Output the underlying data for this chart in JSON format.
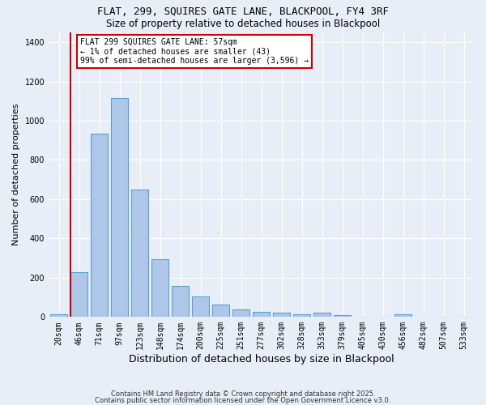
{
  "title_line1": "FLAT, 299, SQUIRES GATE LANE, BLACKPOOL, FY4 3RF",
  "title_line2": "Size of property relative to detached houses in Blackpool",
  "xlabel": "Distribution of detached houses by size in Blackpool",
  "ylabel": "Number of detached properties",
  "categories": [
    "20sqm",
    "46sqm",
    "71sqm",
    "97sqm",
    "123sqm",
    "148sqm",
    "174sqm",
    "200sqm",
    "225sqm",
    "251sqm",
    "277sqm",
    "302sqm",
    "328sqm",
    "353sqm",
    "379sqm",
    "405sqm",
    "430sqm",
    "456sqm",
    "482sqm",
    "507sqm",
    "533sqm"
  ],
  "values": [
    15,
    230,
    935,
    1115,
    650,
    295,
    160,
    105,
    65,
    40,
    25,
    20,
    15,
    20,
    10,
    0,
    0,
    15,
    0,
    0,
    0
  ],
  "bar_color": "#aec6e8",
  "bar_edge_color": "#5a9fd4",
  "vline_x": 1.0,
  "vline_color": "#cc0000",
  "annotation_text": "FLAT 299 SQUIRES GATE LANE: 57sqm\n← 1% of detached houses are smaller (43)\n99% of semi-detached houses are larger (3,596) →",
  "annotation_box_color": "#ffffff",
  "annotation_box_edge_color": "#cc0000",
  "ylim": [
    0,
    1450
  ],
  "background_color": "#e8eef7",
  "grid_color": "#ffffff",
  "footer_line1": "Contains HM Land Registry data © Crown copyright and database right 2025.",
  "footer_line2": "Contains public sector information licensed under the Open Government Licence v3.0."
}
